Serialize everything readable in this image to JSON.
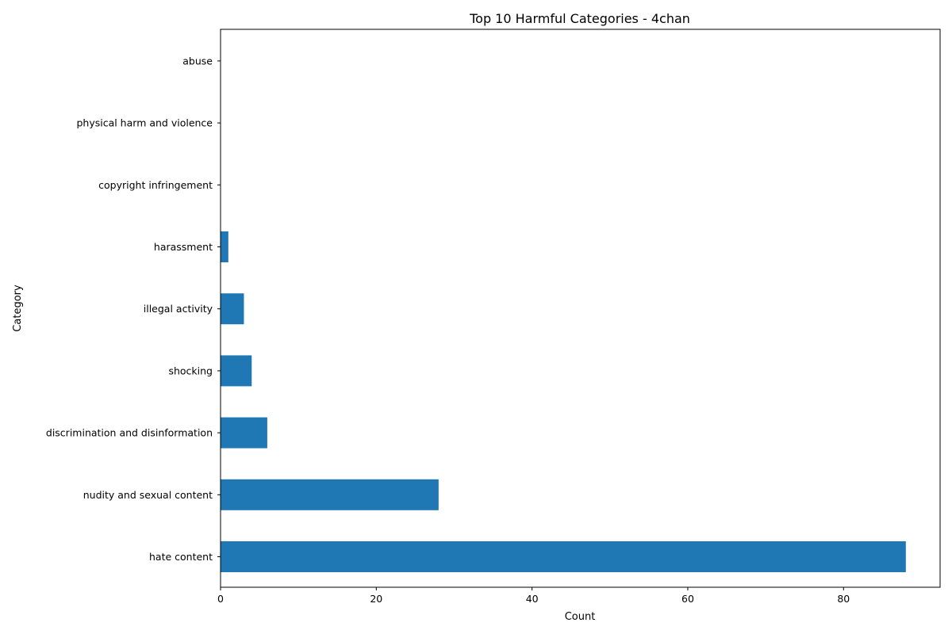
{
  "chart_data": {
    "type": "bar",
    "orientation": "horizontal",
    "title": "Top 10 Harmful Categories - 4chan",
    "xlabel": "Count",
    "ylabel": "Category",
    "categories": [
      "hate content",
      "nudity and sexual content",
      "discrimination and disinformation",
      "shocking",
      "illegal activity",
      "harassment",
      "copyright infringement",
      "physical harm and violence",
      "abuse"
    ],
    "values": [
      88,
      28,
      6,
      4,
      3,
      1,
      0,
      0,
      0
    ],
    "xlim": [
      0,
      92.4
    ],
    "xticks": [
      0,
      20,
      40,
      60,
      80
    ],
    "bar_color": "#1f77b4",
    "grid": false,
    "legend": "none"
  }
}
